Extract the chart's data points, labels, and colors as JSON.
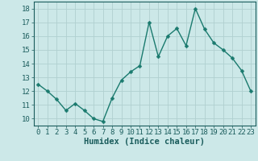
{
  "x": [
    0,
    1,
    2,
    3,
    4,
    5,
    6,
    7,
    8,
    9,
    10,
    11,
    12,
    13,
    14,
    15,
    16,
    17,
    18,
    19,
    20,
    21,
    22,
    23
  ],
  "y": [
    12.5,
    12.0,
    11.4,
    10.6,
    11.1,
    10.6,
    10.0,
    9.8,
    11.5,
    12.8,
    13.4,
    13.85,
    17.0,
    14.5,
    16.0,
    16.55,
    15.3,
    18.0,
    16.5,
    15.5,
    15.0,
    14.4,
    13.5,
    12.0
  ],
  "line_color": "#1a7a6e",
  "marker": "D",
  "marker_size": 2.5,
  "bg_color": "#cce8e8",
  "grid_color": "#b0d0d0",
  "xlabel": "Humidex (Indice chaleur)",
  "ylabel": "",
  "xlim": [
    -0.5,
    23.5
  ],
  "ylim": [
    9.5,
    18.5
  ],
  "yticks": [
    10,
    11,
    12,
    13,
    14,
    15,
    16,
    17,
    18
  ],
  "xticks": [
    0,
    1,
    2,
    3,
    4,
    5,
    6,
    7,
    8,
    9,
    10,
    11,
    12,
    13,
    14,
    15,
    16,
    17,
    18,
    19,
    20,
    21,
    22,
    23
  ],
  "tick_color": "#1a5c5c",
  "label_fontsize": 6.5,
  "axis_fontsize": 7.5,
  "linewidth": 1.0
}
